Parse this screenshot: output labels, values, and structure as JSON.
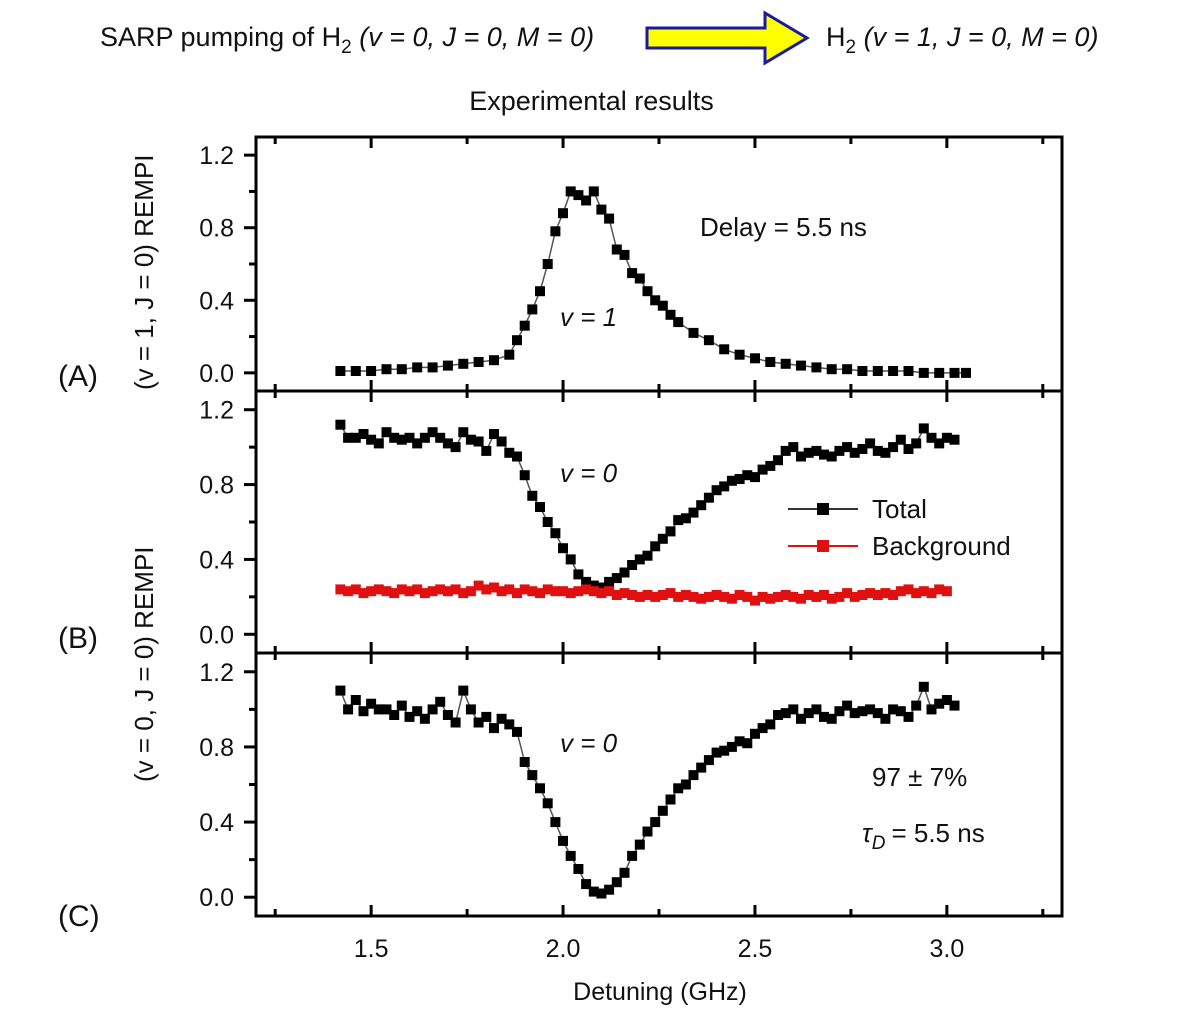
{
  "header": {
    "left_text": "SARP pumping of H",
    "left_sub": "2",
    "left_state": "(v = 0, J = 0, M = 0)",
    "right_text": "H",
    "right_sub": "2",
    "right_state": "(v = 1, J = 0, M = 0)",
    "arrow_fill": "#ffff00",
    "arrow_stroke": "#1a1aa0"
  },
  "chart_data": {
    "type": "scatter",
    "title": "Experimental results",
    "xlabel": "Detuning (GHz)",
    "xlim": [
      1.2,
      3.3
    ],
    "x_ticks": [
      "1.5",
      "2.0",
      "2.5",
      "3.0"
    ],
    "x_tick_values": [
      1.5,
      2.0,
      2.5,
      3.0
    ],
    "total_color": "#000000",
    "background_color": "#e01010",
    "panels": [
      {
        "label": "(A)",
        "ylim": [
          -0.1,
          1.3
        ],
        "y_ticks": [
          "0.0",
          "0.4",
          "0.8",
          "1.2"
        ],
        "y_tick_values": [
          0.0,
          0.4,
          0.8,
          1.2
        ],
        "annotations": [
          "Delay = 5.5 ns",
          "v = 1"
        ],
        "series": [
          {
            "name": "Total",
            "color": "#000000",
            "x": [
              1.42,
              1.46,
              1.5,
              1.54,
              1.58,
              1.62,
              1.66,
              1.7,
              1.74,
              1.78,
              1.82,
              1.86,
              1.88,
              1.9,
              1.92,
              1.94,
              1.96,
              1.98,
              2.0,
              2.02,
              2.04,
              2.06,
              2.08,
              2.1,
              2.12,
              2.14,
              2.16,
              2.18,
              2.2,
              2.22,
              2.24,
              2.26,
              2.28,
              2.3,
              2.34,
              2.38,
              2.42,
              2.46,
              2.5,
              2.54,
              2.58,
              2.62,
              2.66,
              2.7,
              2.74,
              2.78,
              2.82,
              2.86,
              2.9,
              2.94,
              2.98,
              3.02,
              3.05
            ],
            "y": [
              0.01,
              0.01,
              0.01,
              0.02,
              0.02,
              0.03,
              0.03,
              0.04,
              0.05,
              0.06,
              0.07,
              0.1,
              0.18,
              0.26,
              0.35,
              0.45,
              0.6,
              0.78,
              0.88,
              1.0,
              0.98,
              0.95,
              1.0,
              0.9,
              0.85,
              0.68,
              0.65,
              0.55,
              0.52,
              0.45,
              0.4,
              0.37,
              0.32,
              0.28,
              0.22,
              0.18,
              0.13,
              0.1,
              0.08,
              0.06,
              0.05,
              0.04,
              0.03,
              0.02,
              0.02,
              0.01,
              0.01,
              0.01,
              0.01,
              0.0,
              0.0,
              0.0,
              0.0
            ]
          }
        ]
      },
      {
        "label": "(B)",
        "ylim": [
          -0.1,
          1.3
        ],
        "y_ticks": [
          "0.0",
          "0.4",
          "0.8",
          "1.2"
        ],
        "y_tick_values": [
          0.0,
          0.4,
          0.8,
          1.2
        ],
        "annotations": [
          "v = 0"
        ],
        "legend": {
          "placement": "right",
          "entries": [
            "Total",
            "Background"
          ]
        },
        "series": [
          {
            "name": "Total",
            "color": "#000000",
            "x": [
              1.42,
              1.44,
              1.46,
              1.48,
              1.5,
              1.52,
              1.54,
              1.56,
              1.58,
              1.6,
              1.62,
              1.64,
              1.66,
              1.68,
              1.7,
              1.72,
              1.74,
              1.76,
              1.78,
              1.8,
              1.82,
              1.84,
              1.86,
              1.88,
              1.9,
              1.92,
              1.94,
              1.96,
              1.98,
              2.0,
              2.02,
              2.04,
              2.06,
              2.08,
              2.1,
              2.12,
              2.14,
              2.16,
              2.18,
              2.2,
              2.22,
              2.24,
              2.26,
              2.28,
              2.3,
              2.32,
              2.34,
              2.36,
              2.38,
              2.4,
              2.42,
              2.44,
              2.46,
              2.48,
              2.5,
              2.52,
              2.54,
              2.56,
              2.58,
              2.6,
              2.62,
              2.64,
              2.66,
              2.68,
              2.7,
              2.72,
              2.74,
              2.76,
              2.78,
              2.8,
              2.82,
              2.84,
              2.86,
              2.88,
              2.9,
              2.92,
              2.94,
              2.96,
              2.98,
              3.0,
              3.02
            ],
            "y": [
              1.12,
              1.05,
              1.05,
              1.07,
              1.04,
              1.02,
              1.08,
              1.05,
              1.04,
              1.05,
              1.02,
              1.05,
              1.08,
              1.05,
              1.02,
              1.0,
              1.08,
              1.04,
              1.03,
              0.98,
              1.07,
              1.03,
              0.97,
              0.95,
              0.85,
              0.74,
              0.68,
              0.6,
              0.54,
              0.46,
              0.4,
              0.32,
              0.28,
              0.26,
              0.25,
              0.28,
              0.3,
              0.33,
              0.37,
              0.4,
              0.42,
              0.47,
              0.51,
              0.55,
              0.61,
              0.62,
              0.65,
              0.69,
              0.73,
              0.77,
              0.79,
              0.82,
              0.83,
              0.85,
              0.84,
              0.88,
              0.9,
              0.93,
              0.98,
              1.0,
              0.95,
              0.97,
              0.98,
              0.96,
              0.95,
              0.98,
              1.0,
              0.97,
              0.99,
              1.02,
              0.98,
              0.97,
              1.0,
              1.04,
              0.99,
              1.02,
              1.1,
              1.05,
              1.02,
              1.05,
              1.04
            ]
          },
          {
            "name": "Background",
            "color": "#e01010",
            "x": [
              1.42,
              1.44,
              1.46,
              1.48,
              1.5,
              1.52,
              1.54,
              1.56,
              1.58,
              1.6,
              1.62,
              1.64,
              1.66,
              1.68,
              1.7,
              1.72,
              1.74,
              1.76,
              1.78,
              1.8,
              1.82,
              1.84,
              1.86,
              1.88,
              1.9,
              1.92,
              1.94,
              1.96,
              1.98,
              2.0,
              2.02,
              2.04,
              2.06,
              2.08,
              2.1,
              2.12,
              2.14,
              2.16,
              2.18,
              2.2,
              2.22,
              2.24,
              2.26,
              2.28,
              2.3,
              2.32,
              2.34,
              2.36,
              2.38,
              2.4,
              2.42,
              2.44,
              2.46,
              2.48,
              2.5,
              2.52,
              2.54,
              2.56,
              2.58,
              2.6,
              2.62,
              2.64,
              2.66,
              2.68,
              2.7,
              2.72,
              2.74,
              2.76,
              2.78,
              2.8,
              2.82,
              2.84,
              2.86,
              2.88,
              2.9,
              2.92,
              2.94,
              2.96,
              2.98,
              3.0
            ],
            "y": [
              0.24,
              0.23,
              0.24,
              0.22,
              0.23,
              0.24,
              0.23,
              0.22,
              0.24,
              0.23,
              0.24,
              0.22,
              0.23,
              0.24,
              0.23,
              0.24,
              0.22,
              0.23,
              0.26,
              0.24,
              0.25,
              0.23,
              0.24,
              0.22,
              0.24,
              0.23,
              0.22,
              0.24,
              0.23,
              0.23,
              0.22,
              0.23,
              0.24,
              0.23,
              0.22,
              0.23,
              0.21,
              0.22,
              0.21,
              0.2,
              0.21,
              0.2,
              0.21,
              0.22,
              0.2,
              0.21,
              0.2,
              0.19,
              0.2,
              0.21,
              0.2,
              0.19,
              0.21,
              0.2,
              0.18,
              0.2,
              0.19,
              0.2,
              0.21,
              0.2,
              0.19,
              0.21,
              0.2,
              0.21,
              0.19,
              0.2,
              0.22,
              0.2,
              0.21,
              0.22,
              0.21,
              0.22,
              0.21,
              0.23,
              0.24,
              0.22,
              0.23,
              0.22,
              0.24,
              0.23
            ]
          }
        ]
      },
      {
        "label": "(C)",
        "ylim": [
          -0.1,
          1.3
        ],
        "y_ticks": [
          "0.0",
          "0.4",
          "0.8",
          "1.2"
        ],
        "y_tick_values": [
          0.0,
          0.4,
          0.8,
          1.2
        ],
        "annotations": [
          "v = 0",
          "97 ± 7%",
          "τ",
          "D",
          "= 5.5 ns"
        ],
        "series": [
          {
            "name": "Total",
            "color": "#000000",
            "x": [
              1.42,
              1.44,
              1.46,
              1.48,
              1.5,
              1.52,
              1.54,
              1.56,
              1.58,
              1.6,
              1.62,
              1.64,
              1.66,
              1.68,
              1.7,
              1.72,
              1.74,
              1.76,
              1.78,
              1.8,
              1.82,
              1.84,
              1.86,
              1.88,
              1.9,
              1.92,
              1.94,
              1.96,
              1.98,
              2.0,
              2.02,
              2.04,
              2.06,
              2.08,
              2.1,
              2.12,
              2.14,
              2.16,
              2.18,
              2.2,
              2.22,
              2.24,
              2.26,
              2.28,
              2.3,
              2.32,
              2.34,
              2.36,
              2.38,
              2.4,
              2.42,
              2.44,
              2.46,
              2.48,
              2.5,
              2.52,
              2.54,
              2.56,
              2.58,
              2.6,
              2.62,
              2.64,
              2.66,
              2.68,
              2.7,
              2.72,
              2.74,
              2.76,
              2.78,
              2.8,
              2.82,
              2.84,
              2.86,
              2.88,
              2.9,
              2.92,
              2.94,
              2.96,
              2.98,
              3.0,
              3.02
            ],
            "y": [
              1.1,
              1.0,
              1.05,
              0.99,
              1.03,
              1.0,
              1.0,
              0.97,
              1.02,
              0.96,
              0.99,
              0.95,
              1.0,
              1.04,
              0.97,
              0.93,
              1.1,
              1.0,
              0.93,
              0.96,
              0.9,
              0.95,
              0.92,
              0.88,
              0.72,
              0.65,
              0.58,
              0.5,
              0.4,
              0.3,
              0.22,
              0.15,
              0.07,
              0.03,
              0.02,
              0.04,
              0.08,
              0.13,
              0.22,
              0.28,
              0.35,
              0.4,
              0.46,
              0.52,
              0.58,
              0.6,
              0.65,
              0.69,
              0.73,
              0.77,
              0.78,
              0.8,
              0.83,
              0.82,
              0.87,
              0.9,
              0.92,
              0.97,
              0.98,
              1.0,
              0.95,
              0.98,
              1.0,
              0.96,
              0.95,
              0.99,
              1.02,
              0.98,
              0.99,
              1.0,
              0.98,
              0.95,
              1.0,
              0.99,
              0.96,
              1.02,
              1.12,
              1.0,
              1.03,
              1.05,
              1.02
            ]
          }
        ]
      }
    ],
    "ylabel_upper": "(v = 1, J = 0) REMPI",
    "ylabel_lower": "(v = 0, J = 0) REMPI"
  }
}
